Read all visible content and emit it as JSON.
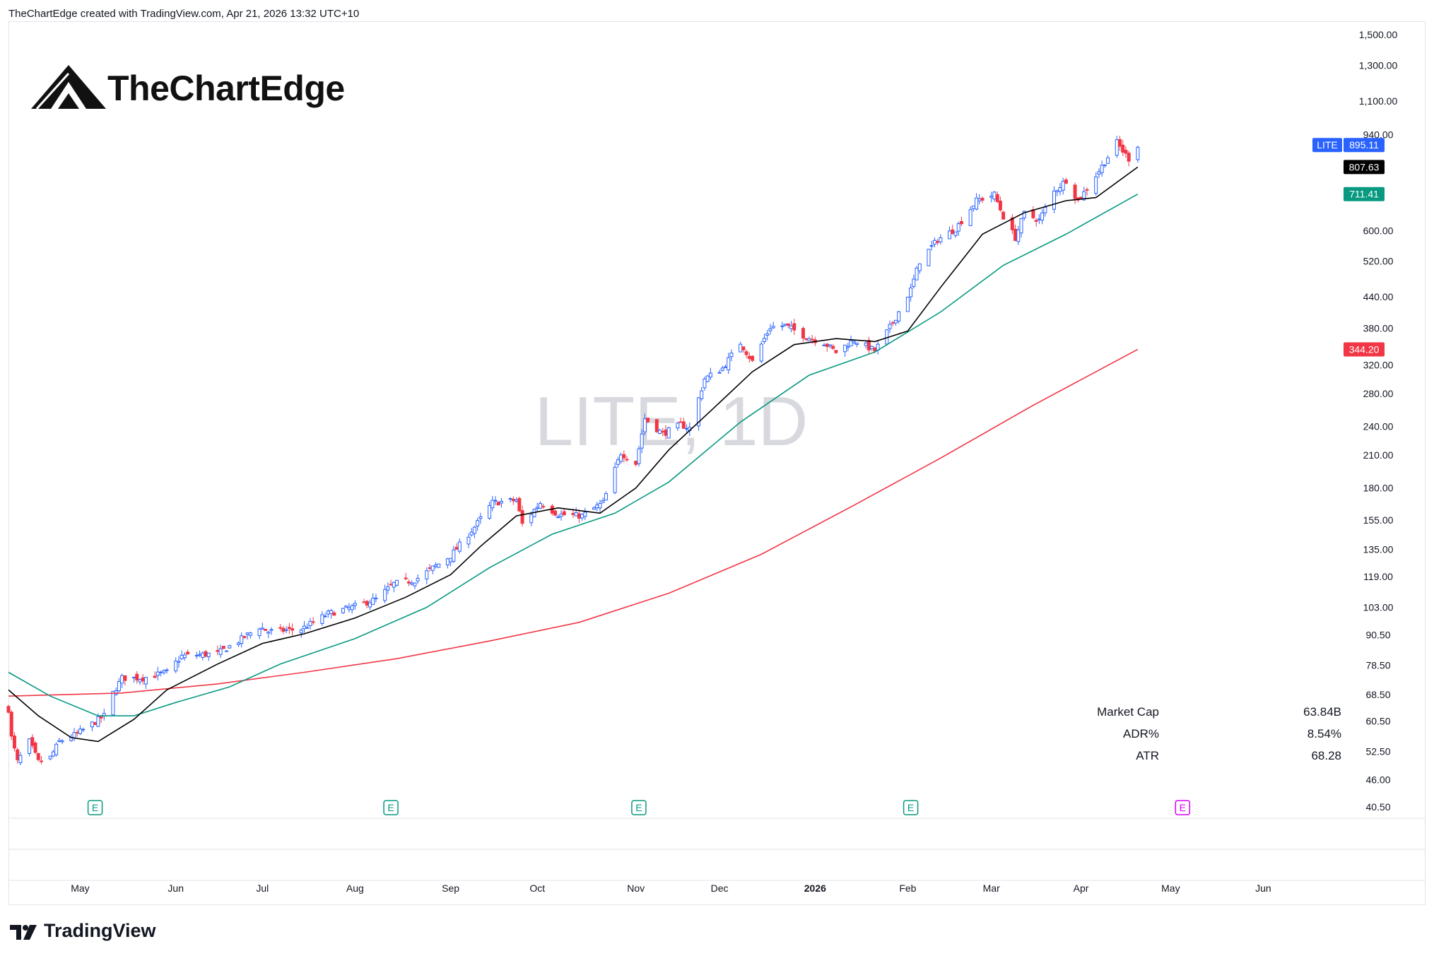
{
  "header": {
    "credit": "TheChartEdge created with TradingView.com, Apr 21, 2026 13:32 UTC+10"
  },
  "logo": {
    "text": "TheChartEdge"
  },
  "watermark": {
    "text": "LITE, 1D"
  },
  "footer": {
    "brand": "TradingView"
  },
  "stats": [
    {
      "label": "Market Cap",
      "value": "63.84B"
    },
    {
      "label": "ADR%",
      "value": "8.54%"
    },
    {
      "label": "ATR",
      "value": "68.28"
    }
  ],
  "price_tags": [
    {
      "label": "LITE",
      "value": "895.11",
      "color": "#2962ff"
    },
    {
      "value": "807.63",
      "color": "#000000"
    },
    {
      "value": "711.41",
      "color": "#089981"
    },
    {
      "value": "344.20",
      "color": "#f23645"
    }
  ],
  "colors": {
    "up": "#2962ff",
    "down": "#f23645",
    "ma_fast": "#000000",
    "ma_mid": "#089981",
    "ma_slow": "#f23645",
    "earnings_past": "#089981",
    "earnings_future": "#d500f9"
  },
  "chart_data": {
    "type": "candlestick",
    "symbol": "LITE",
    "interval": "1D",
    "y_scale": "log",
    "y_ticks": [
      40.5,
      46,
      52.5,
      60.5,
      68.5,
      78.5,
      90.5,
      103,
      119,
      135,
      155,
      180,
      210,
      240,
      280,
      320,
      380,
      440,
      520,
      600,
      940,
      1100,
      1300,
      1500
    ],
    "y_tick_labels": [
      "40.50",
      "46.00",
      "52.50",
      "60.50",
      "68.50",
      "78.50",
      "90.50",
      "103.00",
      "119.00",
      "135.00",
      "155.00",
      "180.00",
      "210.00",
      "240.00",
      "280.00",
      "320.00",
      "380.00",
      "440.00",
      "520.00",
      "600.00",
      "940.00",
      "1,100.00",
      "1,300.00",
      "1,500.00"
    ],
    "x_ticks": [
      {
        "date": "2025-05-01",
        "label": "May"
      },
      {
        "date": "2025-06-02",
        "label": "Jun"
      },
      {
        "date": "2025-07-01",
        "label": "Jul"
      },
      {
        "date": "2025-08-01",
        "label": "Aug"
      },
      {
        "date": "2025-09-02",
        "label": "Sep"
      },
      {
        "date": "2025-10-01",
        "label": "Oct"
      },
      {
        "date": "2025-11-03",
        "label": "Nov"
      },
      {
        "date": "2025-12-01",
        "label": "Dec"
      },
      {
        "date": "2026-01-02",
        "label": "2026"
      },
      {
        "date": "2026-02-02",
        "label": "Feb"
      },
      {
        "date": "2026-03-02",
        "label": "Mar"
      },
      {
        "date": "2026-04-01",
        "label": "Apr"
      },
      {
        "date": "2026-05-01",
        "label": "May"
      },
      {
        "date": "2026-06-01",
        "label": "Jun"
      }
    ],
    "x_range": [
      "2025-04-07",
      "2026-06-30"
    ],
    "last_date": "2026-04-20",
    "price_path": [
      {
        "date": "2025-04-07",
        "close": 64
      },
      {
        "date": "2025-04-08",
        "close": 56
      },
      {
        "date": "2025-04-10",
        "close": 50
      },
      {
        "date": "2025-04-14",
        "close": 55
      },
      {
        "date": "2025-04-17",
        "close": 50
      },
      {
        "date": "2025-04-21",
        "close": 51
      },
      {
        "date": "2025-04-24",
        "close": 55
      },
      {
        "date": "2025-04-30",
        "close": 57
      },
      {
        "date": "2025-05-09",
        "close": 62
      },
      {
        "date": "2025-05-12",
        "close": 69
      },
      {
        "date": "2025-05-15",
        "close": 74
      },
      {
        "date": "2025-05-22",
        "close": 74
      },
      {
        "date": "2025-05-30",
        "close": 76
      },
      {
        "date": "2025-06-04",
        "close": 82
      },
      {
        "date": "2025-06-16",
        "close": 83
      },
      {
        "date": "2025-06-23",
        "close": 88
      },
      {
        "date": "2025-06-30",
        "close": 94
      },
      {
        "date": "2025-07-03",
        "close": 92
      },
      {
        "date": "2025-07-14",
        "close": 93
      },
      {
        "date": "2025-07-23",
        "close": 100
      },
      {
        "date": "2025-07-31",
        "close": 103
      },
      {
        "date": "2025-08-08",
        "close": 107
      },
      {
        "date": "2025-08-14",
        "close": 115
      },
      {
        "date": "2025-08-21",
        "close": 117
      },
      {
        "date": "2025-08-28",
        "close": 125
      },
      {
        "date": "2025-09-02",
        "close": 131
      },
      {
        "date": "2025-09-10",
        "close": 150
      },
      {
        "date": "2025-09-16",
        "close": 168
      },
      {
        "date": "2025-09-24",
        "close": 170
      },
      {
        "date": "2025-09-26",
        "close": 152
      },
      {
        "date": "2025-10-02",
        "close": 168
      },
      {
        "date": "2025-10-08",
        "close": 159
      },
      {
        "date": "2025-10-16",
        "close": 158
      },
      {
        "date": "2025-10-23",
        "close": 168
      },
      {
        "date": "2025-10-29",
        "close": 212
      },
      {
        "date": "2025-11-03",
        "close": 202
      },
      {
        "date": "2025-11-06",
        "close": 249
      },
      {
        "date": "2025-11-12",
        "close": 232
      },
      {
        "date": "2025-11-18",
        "close": 242
      },
      {
        "date": "2025-11-21",
        "close": 238
      },
      {
        "date": "2025-11-26",
        "close": 300
      },
      {
        "date": "2025-12-02",
        "close": 315
      },
      {
        "date": "2025-12-08",
        "close": 355
      },
      {
        "date": "2025-12-12",
        "close": 325
      },
      {
        "date": "2025-12-18",
        "close": 382
      },
      {
        "date": "2025-12-23",
        "close": 385
      },
      {
        "date": "2025-12-30",
        "close": 365
      },
      {
        "date": "2026-01-05",
        "close": 355
      },
      {
        "date": "2026-01-09",
        "close": 340
      },
      {
        "date": "2026-01-15",
        "close": 360
      },
      {
        "date": "2026-01-22",
        "close": 342
      },
      {
        "date": "2026-01-28",
        "close": 390
      },
      {
        "date": "2026-02-03",
        "close": 455
      },
      {
        "date": "2026-02-06",
        "close": 520
      },
      {
        "date": "2026-02-12",
        "close": 575
      },
      {
        "date": "2026-02-18",
        "close": 605
      },
      {
        "date": "2026-02-25",
        "close": 690
      },
      {
        "date": "2026-03-03",
        "close": 710
      },
      {
        "date": "2026-03-06",
        "close": 640
      },
      {
        "date": "2026-03-10",
        "close": 580
      },
      {
        "date": "2026-03-13",
        "close": 650
      },
      {
        "date": "2026-03-18",
        "close": 630
      },
      {
        "date": "2026-03-23",
        "close": 720
      },
      {
        "date": "2026-03-27",
        "close": 760
      },
      {
        "date": "2026-03-31",
        "close": 690
      },
      {
        "date": "2026-04-03",
        "close": 730
      },
      {
        "date": "2026-04-08",
        "close": 810
      },
      {
        "date": "2026-04-13",
        "close": 905
      },
      {
        "date": "2026-04-15",
        "close": 870
      },
      {
        "date": "2026-04-17",
        "close": 840
      },
      {
        "date": "2026-04-20",
        "close": 895.11
      }
    ],
    "ma_fast": [
      {
        "date": "2025-04-07",
        "value": 70
      },
      {
        "date": "2025-04-17",
        "value": 62
      },
      {
        "date": "2025-04-28",
        "value": 56
      },
      {
        "date": "2025-05-07",
        "value": 55
      },
      {
        "date": "2025-05-19",
        "value": 61
      },
      {
        "date": "2025-05-30",
        "value": 70
      },
      {
        "date": "2025-06-16",
        "value": 79
      },
      {
        "date": "2025-07-01",
        "value": 87
      },
      {
        "date": "2025-07-15",
        "value": 91
      },
      {
        "date": "2025-08-01",
        "value": 98
      },
      {
        "date": "2025-08-18",
        "value": 108
      },
      {
        "date": "2025-09-02",
        "value": 120
      },
      {
        "date": "2025-09-12",
        "value": 137
      },
      {
        "date": "2025-09-24",
        "value": 158
      },
      {
        "date": "2025-10-08",
        "value": 164
      },
      {
        "date": "2025-10-22",
        "value": 160
      },
      {
        "date": "2025-11-03",
        "value": 180
      },
      {
        "date": "2025-11-14",
        "value": 215
      },
      {
        "date": "2025-11-28",
        "value": 258
      },
      {
        "date": "2025-12-12",
        "value": 310
      },
      {
        "date": "2025-12-26",
        "value": 352
      },
      {
        "date": "2026-01-09",
        "value": 362
      },
      {
        "date": "2026-01-22",
        "value": 357
      },
      {
        "date": "2026-02-02",
        "value": 375
      },
      {
        "date": "2026-02-13",
        "value": 460
      },
      {
        "date": "2026-02-27",
        "value": 590
      },
      {
        "date": "2026-03-13",
        "value": 652
      },
      {
        "date": "2026-03-27",
        "value": 690
      },
      {
        "date": "2026-04-06",
        "value": 700
      },
      {
        "date": "2026-04-20",
        "value": 807.63
      }
    ],
    "ma_mid": [
      {
        "date": "2025-04-07",
        "value": 76
      },
      {
        "date": "2025-04-21",
        "value": 68
      },
      {
        "date": "2025-05-07",
        "value": 62
      },
      {
        "date": "2025-05-19",
        "value": 62
      },
      {
        "date": "2025-06-02",
        "value": 66
      },
      {
        "date": "2025-06-20",
        "value": 71
      },
      {
        "date": "2025-07-07",
        "value": 79
      },
      {
        "date": "2025-08-01",
        "value": 89
      },
      {
        "date": "2025-08-25",
        "value": 103
      },
      {
        "date": "2025-09-15",
        "value": 124
      },
      {
        "date": "2025-10-06",
        "value": 145
      },
      {
        "date": "2025-10-27",
        "value": 160
      },
      {
        "date": "2025-11-14",
        "value": 185
      },
      {
        "date": "2025-12-08",
        "value": 245
      },
      {
        "date": "2025-12-31",
        "value": 305
      },
      {
        "date": "2026-01-22",
        "value": 340
      },
      {
        "date": "2026-02-13",
        "value": 410
      },
      {
        "date": "2026-03-06",
        "value": 510
      },
      {
        "date": "2026-03-27",
        "value": 590
      },
      {
        "date": "2026-04-20",
        "value": 711.41
      }
    ],
    "ma_slow": [
      {
        "date": "2025-04-07",
        "value": 68
      },
      {
        "date": "2025-05-15",
        "value": 69
      },
      {
        "date": "2025-06-16",
        "value": 72
      },
      {
        "date": "2025-07-15",
        "value": 76
      },
      {
        "date": "2025-08-15",
        "value": 81
      },
      {
        "date": "2025-09-15",
        "value": 88
      },
      {
        "date": "2025-10-15",
        "value": 96
      },
      {
        "date": "2025-11-14",
        "value": 110
      },
      {
        "date": "2025-12-15",
        "value": 132
      },
      {
        "date": "2026-01-15",
        "value": 166
      },
      {
        "date": "2026-02-13",
        "value": 207
      },
      {
        "date": "2026-03-16",
        "value": 265
      },
      {
        "date": "2026-04-20",
        "value": 344.2
      }
    ],
    "earnings": [
      {
        "date": "2025-05-06",
        "upcoming": false,
        "label": "E"
      },
      {
        "date": "2025-08-13",
        "upcoming": false,
        "label": "E"
      },
      {
        "date": "2025-11-04",
        "upcoming": false,
        "label": "E"
      },
      {
        "date": "2026-02-03",
        "upcoming": false,
        "label": "E"
      },
      {
        "date": "2026-05-05",
        "upcoming": true,
        "label": "E"
      }
    ]
  }
}
